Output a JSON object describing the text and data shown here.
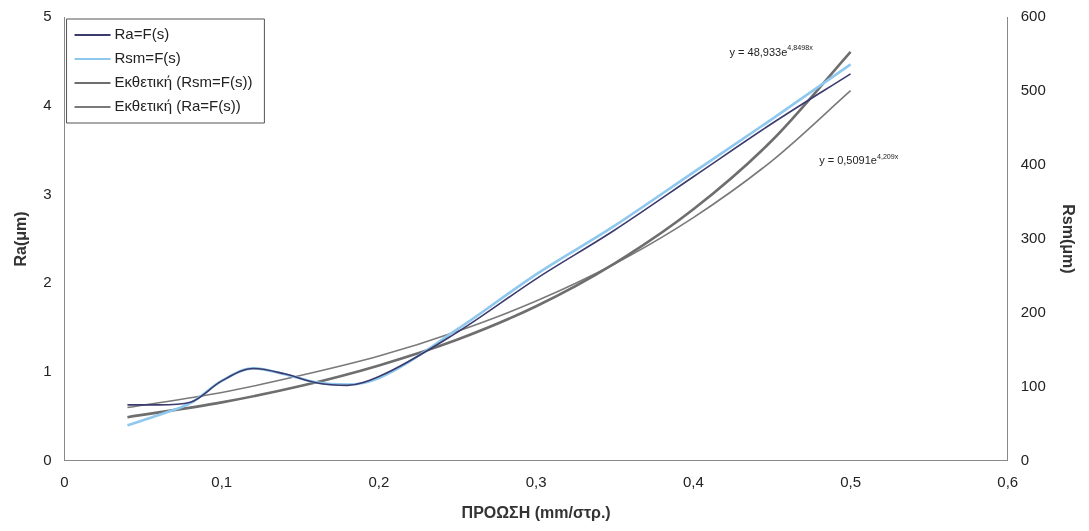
{
  "chart_data": {
    "type": "line",
    "xlabel": "ΠΡΟΩΣΗ (mm/στρ.)",
    "ylabel": "Ra(μm)",
    "y2label": "Rsm(μm)",
    "xlim": [
      0,
      0.6
    ],
    "xticks": [
      0,
      {
        "value": 0.1,
        "label": "0,1"
      },
      {
        "value": 0.2,
        "label": "0,2"
      },
      {
        "value": 0.3,
        "label": "0,3"
      },
      {
        "value": 0.4,
        "label": "0,4"
      },
      {
        "value": 0.5,
        "label": "0,5"
      },
      {
        "value": 0.6,
        "label": "0,6"
      }
    ],
    "ylim": [
      0,
      5
    ],
    "yticks": [
      0,
      1,
      2,
      3,
      4,
      5
    ],
    "y2lim": [
      0,
      600
    ],
    "y2ticks": [
      0,
      100,
      200,
      300,
      400,
      500,
      600
    ],
    "grid": false,
    "legend": "top left",
    "marker": "none",
    "line_style": "solid",
    "series": [
      {
        "name": "Ra=F(s)",
        "color": "#3b3b6e",
        "x": [
          0.04,
          0.06,
          0.08,
          0.1,
          0.12,
          0.14,
          0.16,
          0.18,
          0.2,
          0.25,
          0.3,
          0.35,
          0.4,
          0.45,
          0.5
        ],
        "values": [
          0.63,
          0.63,
          0.66,
          0.9,
          1.04,
          0.98,
          0.88,
          0.85,
          0.95,
          1.45,
          2.05,
          2.6,
          3.2,
          3.8,
          4.36
        ]
      },
      {
        "name": "Rsm=F(s)",
        "color": "#8ec8ee",
        "axis": "y2",
        "x": [
          0.04,
          0.06,
          0.08,
          0.1,
          0.12,
          0.14,
          0.16,
          0.18,
          0.2,
          0.25,
          0.3,
          0.35,
          0.4,
          0.45,
          0.5
        ],
        "values": [
          48,
          62,
          78,
          108,
          125,
          117,
          106,
          103,
          112,
          178,
          252,
          318,
          390,
          462,
          536
        ]
      },
      {
        "name": "Εκθετική (Rsm=F(s))",
        "color": "#6e6e6e",
        "axis": "y2",
        "x": [
          0.04,
          0.1,
          0.15,
          0.2,
          0.25,
          0.3,
          0.35,
          0.4,
          0.45,
          0.5
        ],
        "values": [
          59,
          79,
          101,
          129,
          164,
          209,
          267,
          340,
          433,
          553
        ]
      },
      {
        "name": "Εκθετική (Ra=F(s))",
        "color": "#7a7a7a",
        "x": [
          0.04,
          0.1,
          0.15,
          0.2,
          0.25,
          0.3,
          0.35,
          0.4,
          0.45,
          0.5
        ],
        "values": [
          0.6,
          0.77,
          0.96,
          1.18,
          1.46,
          1.8,
          2.22,
          2.74,
          3.38,
          4.17
        ]
      }
    ],
    "annotations": [
      "y = 48,933e$^{4,8498x}$",
      "y = 0,5091e$^{4,209x}$"
    ]
  }
}
